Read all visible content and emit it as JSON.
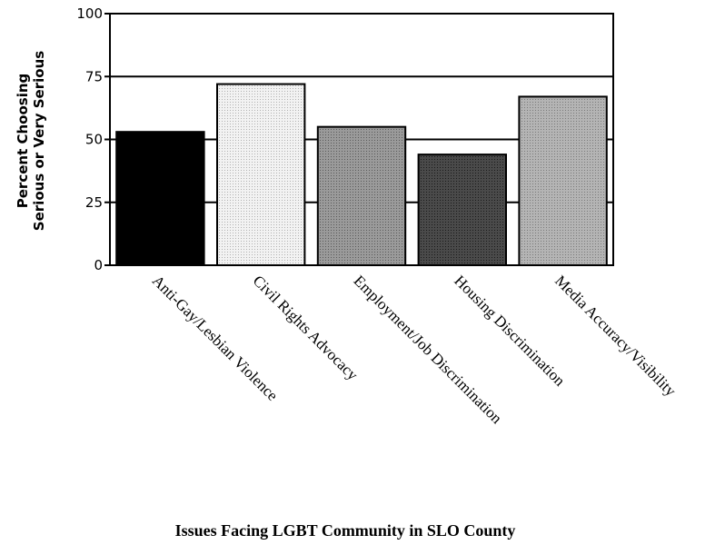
{
  "chart_data": {
    "type": "bar",
    "title": "",
    "xlabel": "Issues Facing LGBT Community in SLO County",
    "ylabel_lines": [
      "Percent Choosing",
      "Serious or Very Serious"
    ],
    "categories": [
      "Anti-Gay/Lesbian Violence",
      "Civil Rights Advocacy",
      "Employment/Job Discrimination",
      "Housing Discrimination",
      "Media Accuracy/Visibility"
    ],
    "values": [
      53,
      72,
      55,
      44,
      67
    ],
    "bar_colors": [
      "#000000",
      "#e4e4e4",
      "#8a8a8a",
      "#3c3c3c",
      "#a6a6a6"
    ],
    "ylim": [
      0,
      100
    ],
    "yticks": [
      0,
      25,
      50,
      75,
      100
    ],
    "gridlines": [
      25,
      50,
      75
    ],
    "grid": true,
    "legend": "none"
  }
}
